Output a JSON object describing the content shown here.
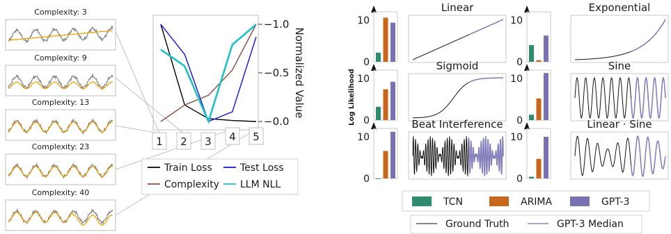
{
  "colors": {
    "train": "#000000",
    "test": "#1010e0",
    "complexity": "#8b4a3f",
    "nll": "#1cc0c8",
    "series_gray": "#7a7a7a",
    "series_orange": "#f0a000",
    "tcn": "#2e8c6e",
    "arima": "#c8661c",
    "gpt3": "#7872b4",
    "median": "#8a86c8",
    "frame": "#c8c8c8"
  },
  "chart_data": [
    {
      "type": "line",
      "panel": "complexity-fits",
      "panels": [
        {
          "title": "Complexity: 3"
        },
        {
          "title": "Complexity: 9"
        },
        {
          "title": "Complexity: 13"
        },
        {
          "title": "Complexity: 23"
        },
        {
          "title": "Complexity: 40"
        }
      ]
    },
    {
      "type": "line",
      "panel": "normalized-curves",
      "x": [
        1,
        2,
        3,
        4,
        5
      ],
      "xticks": [
        "1",
        "2",
        "3",
        "4",
        "5"
      ],
      "ylabel": "Normalized Value",
      "yticks": [
        "−1.0",
        "−0.5",
        "−0.0"
      ],
      "ylim": [
        0,
        1
      ],
      "series": [
        {
          "name": "Train Loss",
          "color_key": "train",
          "values": [
            1.0,
            0.17,
            0.03,
            0.01,
            0.0
          ]
        },
        {
          "name": "Test Loss",
          "color_key": "test",
          "values": [
            1.0,
            0.69,
            0.0,
            0.1,
            0.87
          ]
        },
        {
          "name": "Complexity",
          "color_key": "complexity",
          "values": [
            0.0,
            0.17,
            0.27,
            0.53,
            1.0
          ]
        },
        {
          "name": "LLM NLL",
          "color_key": "nll",
          "values": [
            0.74,
            0.57,
            0.0,
            0.79,
            1.0
          ]
        }
      ],
      "legend": {
        "placement": "bottom",
        "entries": [
          {
            "label": "Train Loss",
            "color_key": "train"
          },
          {
            "label": "Test Loss",
            "color_key": "test"
          },
          {
            "label": "Complexity",
            "color_key": "complexity"
          },
          {
            "label": "LLM NLL",
            "color_key": "nll"
          }
        ]
      }
    },
    {
      "type": "bar",
      "panel": "log-likelihood-bars",
      "ylabel": "Log Likelihood",
      "ylim": [
        0,
        12
      ],
      "yticks": [
        "0",
        "10"
      ],
      "categories": [
        "TCN",
        "ARIMA",
        "GPT-3"
      ],
      "datasets": [
        {
          "title": "Linear",
          "values": [
            2.2,
            10.6,
            9.4
          ]
        },
        {
          "title": "Exponential",
          "values": [
            4.0,
            0.4,
            6.3
          ]
        },
        {
          "title": "Sigmoid",
          "values": [
            3.2,
            7.4,
            9.2
          ]
        },
        {
          "title": "Sine",
          "values": [
            1.3,
            5.2,
            11.3
          ]
        },
        {
          "title": "Beat Interference",
          "values": [
            0.0,
            6.6,
            11.2
          ]
        },
        {
          "title": "Linear · Sine",
          "values": [
            0.4,
            4.7,
            10.0
          ]
        }
      ],
      "legend": {
        "placement": "bottom",
        "entries": [
          {
            "label": "TCN",
            "color_key": "tcn"
          },
          {
            "label": "ARIMA",
            "color_key": "arima"
          },
          {
            "label": "GPT-3",
            "color_key": "gpt3"
          },
          {
            "label": "Ground Truth",
            "color_key": "train"
          },
          {
            "label": "GPT-3 Median",
            "color_key": "median"
          }
        ]
      }
    }
  ]
}
